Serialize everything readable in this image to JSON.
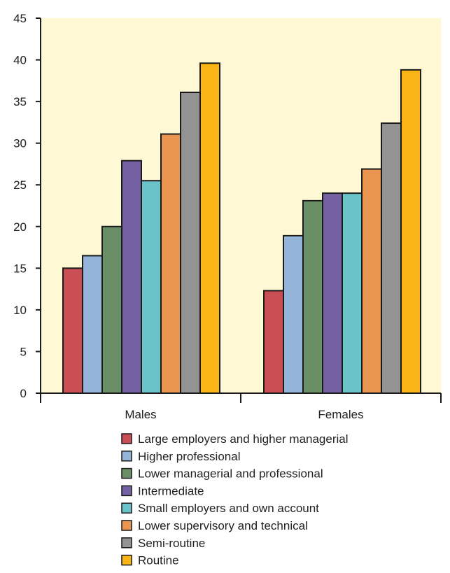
{
  "chart_data": {
    "type": "bar",
    "title": "",
    "xlabel": "",
    "ylabel": "",
    "ylim": [
      0,
      45
    ],
    "yticks": [
      0,
      5,
      10,
      15,
      20,
      25,
      30,
      35,
      40,
      45
    ],
    "grid": false,
    "legend_position": "bottom",
    "plot_background": "#fef9d4",
    "categories": [
      "Males",
      "Females"
    ],
    "series": [
      {
        "name": "Large employers and higher managerial",
        "color": "#c94f55",
        "values": [
          15.0,
          12.3
        ]
      },
      {
        "name": "Higher professional",
        "color": "#94b4d9",
        "values": [
          16.5,
          18.9
        ]
      },
      {
        "name": "Lower managerial and professional",
        "color": "#6a8e66",
        "values": [
          20.0,
          23.1
        ]
      },
      {
        "name": "Intermediate",
        "color": "#7461a3",
        "values": [
          27.9,
          24.0
        ]
      },
      {
        "name": "Small employers and own account",
        "color": "#6ac3c8",
        "values": [
          25.5,
          24.0
        ]
      },
      {
        "name": "Lower supervisory and technical",
        "color": "#eb9650",
        "values": [
          31.1,
          26.9
        ]
      },
      {
        "name": "Semi-routine",
        "color": "#939393",
        "values": [
          36.1,
          32.4
        ]
      },
      {
        "name": "Routine",
        "color": "#fbb416",
        "values": [
          39.6,
          38.8
        ]
      }
    ]
  }
}
